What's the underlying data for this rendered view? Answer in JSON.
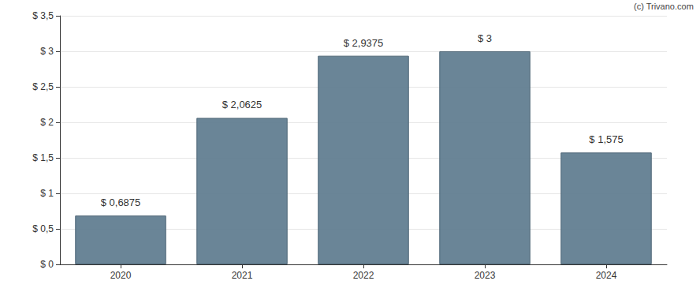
{
  "chart_data": {
    "type": "bar",
    "categories": [
      "2020",
      "2021",
      "2022",
      "2023",
      "2024"
    ],
    "values": [
      0.6875,
      2.0625,
      2.9375,
      3,
      1.575
    ],
    "value_labels": [
      "$ 0,6875",
      "$ 2,0625",
      "$ 2,9375",
      "$ 3",
      "$ 1,575"
    ],
    "data_labels": true,
    "color": "#627e91",
    "ylim": [
      0,
      3.5
    ],
    "yticks": [
      {
        "value": 0,
        "label": "$ 0"
      },
      {
        "value": 0.5,
        "label": "$ 0,5"
      },
      {
        "value": 1,
        "label": "$ 1"
      },
      {
        "value": 1.5,
        "label": "$ 1,5"
      },
      {
        "value": 2,
        "label": "$ 2"
      },
      {
        "value": 2.5,
        "label": "$ 2,5"
      },
      {
        "value": 3,
        "label": "$ 3"
      },
      {
        "value": 3.5,
        "label": "$ 3,5"
      }
    ],
    "grid": true,
    "annotation": "(c) Trivano.com"
  }
}
